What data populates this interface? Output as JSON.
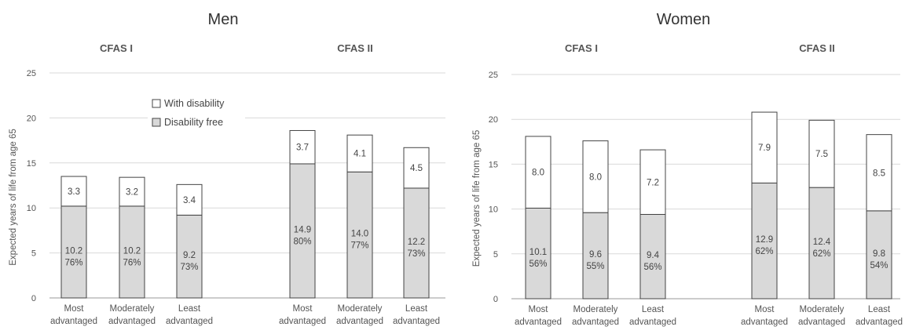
{
  "colors": {
    "disability_free": "#d9d9d9",
    "with_disability": "#ffffff",
    "bar_stroke": "#444444",
    "grid": "#d9d9d9",
    "axis": "#999999"
  },
  "legend": {
    "items": [
      {
        "label": "With disability",
        "color": "#ffffff"
      },
      {
        "label": "Disability free",
        "color": "#d9d9d9"
      }
    ]
  },
  "chart_data": [
    {
      "type": "bar",
      "stacked": true,
      "title": "Men",
      "ylabel": "Expected years of life from age 65",
      "ylim": [
        0,
        25
      ],
      "yticks": [
        "0",
        "5",
        "10",
        "15",
        "20",
        "25"
      ],
      "grid": true,
      "legend_position": "upper-left",
      "groups": [
        {
          "label": "CFAS I",
          "categories": [
            [
              "Most",
              "advantaged"
            ],
            [
              "Moderately",
              "advantaged"
            ],
            [
              "Least",
              "advantaged"
            ]
          ],
          "series": [
            {
              "name": "Disability free",
              "values": [
                10.2,
                10.2,
                9.2
              ],
              "labels": [
                "10.2",
                "10.2",
                "9.2"
              ],
              "percents": [
                "76%",
                "76%",
                "73%"
              ]
            },
            {
              "name": "With disability",
              "values": [
                3.3,
                3.2,
                3.4
              ],
              "labels": [
                "3.3",
                "3.2",
                "3.4"
              ]
            }
          ]
        },
        {
          "label": "CFAS II",
          "categories": [
            [
              "Most",
              "advantaged"
            ],
            [
              "Moderately",
              "advantaged"
            ],
            [
              "Least",
              "advantaged"
            ]
          ],
          "series": [
            {
              "name": "Disability free",
              "values": [
                14.9,
                14.0,
                12.2
              ],
              "labels": [
                "14.9",
                "14.0",
                "12.2"
              ],
              "percents": [
                "80%",
                "77%",
                "73%"
              ]
            },
            {
              "name": "With disability",
              "values": [
                3.7,
                4.1,
                4.5
              ],
              "labels": [
                "3.7",
                "4.1",
                "4.5"
              ]
            }
          ]
        }
      ]
    },
    {
      "type": "bar",
      "stacked": true,
      "title": "Women",
      "ylabel": "Expected years of life from age 65",
      "ylim": [
        0,
        25
      ],
      "yticks": [
        "0",
        "5",
        "10",
        "15",
        "20",
        "25"
      ],
      "grid": true,
      "groups": [
        {
          "label": "CFAS I",
          "categories": [
            [
              "Most",
              "advantaged"
            ],
            [
              "Moderately",
              "advantaged"
            ],
            [
              "Least",
              "advantaged"
            ]
          ],
          "series": [
            {
              "name": "Disability free",
              "values": [
                10.1,
                9.6,
                9.4
              ],
              "labels": [
                "10.1",
                "9.6",
                "9.4"
              ],
              "percents": [
                "56%",
                "55%",
                "56%"
              ]
            },
            {
              "name": "With disability",
              "values": [
                8.0,
                8.0,
                7.2
              ],
              "labels": [
                "8.0",
                "8.0",
                "7.2"
              ]
            }
          ]
        },
        {
          "label": "CFAS II",
          "categories": [
            [
              "Most",
              "advantaged"
            ],
            [
              "Moderately",
              "advantaged"
            ],
            [
              "Least",
              "advantaged"
            ]
          ],
          "series": [
            {
              "name": "Disability free",
              "values": [
                12.9,
                12.4,
                9.8
              ],
              "labels": [
                "12.9",
                "12.4",
                "9.8"
              ],
              "percents": [
                "62%",
                "62%",
                "54%"
              ]
            },
            {
              "name": "With disability",
              "values": [
                7.9,
                7.5,
                8.5
              ],
              "labels": [
                "7.9",
                "7.5",
                "8.5"
              ]
            }
          ]
        }
      ]
    }
  ]
}
